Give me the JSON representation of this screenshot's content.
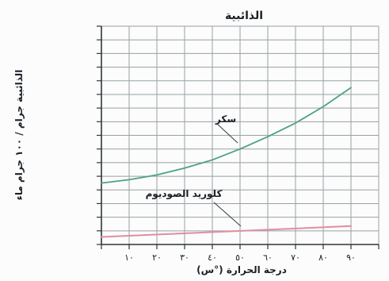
{
  "chart_data": {
    "type": "line",
    "title": "الذائبية",
    "xlabel": "درجة الحرارة (°س)",
    "ylabel": "الذائبية جرام / ١٠٠ جرام ماء",
    "x_ticks": [
      "١٠",
      "٢٠",
      "٣٠",
      "٤٠",
      "٥٠",
      "٦٠",
      "٧٠",
      "٨٠",
      "٩٠"
    ],
    "y_ticks": [],
    "xlim": [
      0,
      100
    ],
    "ylim": [
      0,
      16
    ],
    "grid": true,
    "series": [
      {
        "name": "سكر",
        "color": "#4fa184",
        "x": [
          0,
          10,
          20,
          30,
          40,
          50,
          60,
          70,
          80,
          90
        ],
        "y": [
          4.5,
          4.75,
          5.1,
          5.6,
          6.2,
          7.0,
          7.9,
          8.9,
          10.1,
          11.5
        ]
      },
      {
        "name": "كلوريد الصوديوم",
        "color": "#e08ea0",
        "x": [
          0,
          90
        ],
        "y": [
          0.55,
          1.35
        ]
      }
    ],
    "annotations": [
      {
        "text": "سكر",
        "target_series": 0
      },
      {
        "text": "كلوريد الصوديوم",
        "target_series": 1
      }
    ]
  }
}
